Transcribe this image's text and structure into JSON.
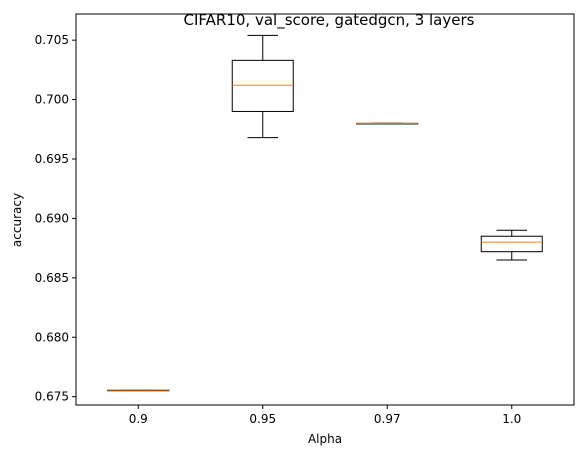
{
  "chart_data": {
    "type": "boxplot",
    "title": "CIFAR10, val_score, gatedgcn, 3 layers",
    "xlabel": "Alpha",
    "ylabel": "accuracy",
    "ylim": [
      0.6743,
      0.7072
    ],
    "yticks": [
      "0.675",
      "0.680",
      "0.685",
      "0.690",
      "0.695",
      "0.700",
      "0.705"
    ],
    "grid": false,
    "colors": {
      "box": "#000000",
      "median": "#ff7f0e"
    },
    "categories": [
      "0.9",
      "0.95",
      "0.97",
      "1.0"
    ],
    "boxes": [
      {
        "whislo": 0.67555,
        "q1": 0.67555,
        "med": 0.67555,
        "q3": 0.67555,
        "whishi": 0.67555
      },
      {
        "whislo": 0.6968,
        "q1": 0.699,
        "med": 0.7012,
        "q3": 0.7033,
        "whishi": 0.7054
      },
      {
        "whislo": 0.698,
        "q1": 0.698,
        "med": 0.698,
        "q3": 0.698,
        "whishi": 0.698
      },
      {
        "whislo": 0.6865,
        "q1": 0.6872,
        "med": 0.688,
        "q3": 0.6885,
        "whishi": 0.689
      }
    ]
  }
}
